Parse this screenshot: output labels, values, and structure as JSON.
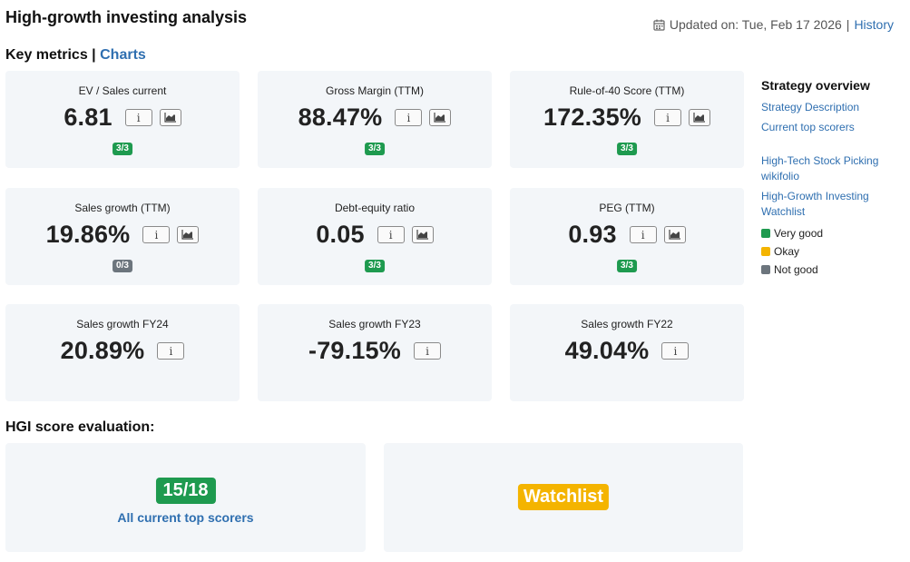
{
  "header": {
    "title": "High-growth investing analysis",
    "updated_text": "Updated on: Tue, Feb 17 2026",
    "separator": "|",
    "history_label": "History"
  },
  "key_metrics": {
    "title": "Key metrics",
    "separator": "|",
    "charts_label": "Charts",
    "info_glyph": "i",
    "cards": [
      {
        "label": "EV / Sales current",
        "value": "6.81",
        "badge": "3/3",
        "status": "good",
        "has_chart": true
      },
      {
        "label": "Gross Margin (TTM)",
        "value": "88.47%",
        "badge": "3/3",
        "status": "good",
        "has_chart": true
      },
      {
        "label": "Rule-of-40 Score (TTM)",
        "value": "172.35%",
        "badge": "3/3",
        "status": "good",
        "has_chart": true
      },
      {
        "label": "Sales growth (TTM)",
        "value": "19.86%",
        "badge": "0/3",
        "status": "bad",
        "has_chart": true
      },
      {
        "label": "Debt-equity ratio",
        "value": "0.05",
        "badge": "3/3",
        "status": "good",
        "has_chart": true
      },
      {
        "label": "PEG (TTM)",
        "value": "0.93",
        "badge": "3/3",
        "status": "good",
        "has_chart": true
      },
      {
        "label": "Sales growth FY24",
        "value": "20.89%",
        "has_chart": false
      },
      {
        "label": "Sales growth FY23",
        "value": "-79.15%",
        "has_chart": false
      },
      {
        "label": "Sales growth FY22",
        "value": "49.04%",
        "has_chart": false
      }
    ]
  },
  "hgi": {
    "title": "HGI score evaluation:",
    "score": "15/18",
    "score_link": "All current top scorers",
    "verdict": "Watchlist"
  },
  "sidebar": {
    "title": "Strategy overview",
    "links1": [
      "Strategy Description",
      "Current top scorers"
    ],
    "links2": [
      "High-Tech Stock Picking wikifolio",
      "High-Growth Investing Watchlist"
    ],
    "legend": [
      {
        "label": "Very good",
        "color": "#1e9a4f"
      },
      {
        "label": "Okay",
        "color": "#f4b400"
      },
      {
        "label": "Not good",
        "color": "#6c757d"
      }
    ]
  },
  "icons": {
    "calendar": "calendar-icon",
    "info": "info-icon",
    "chart": "area-chart-icon"
  }
}
